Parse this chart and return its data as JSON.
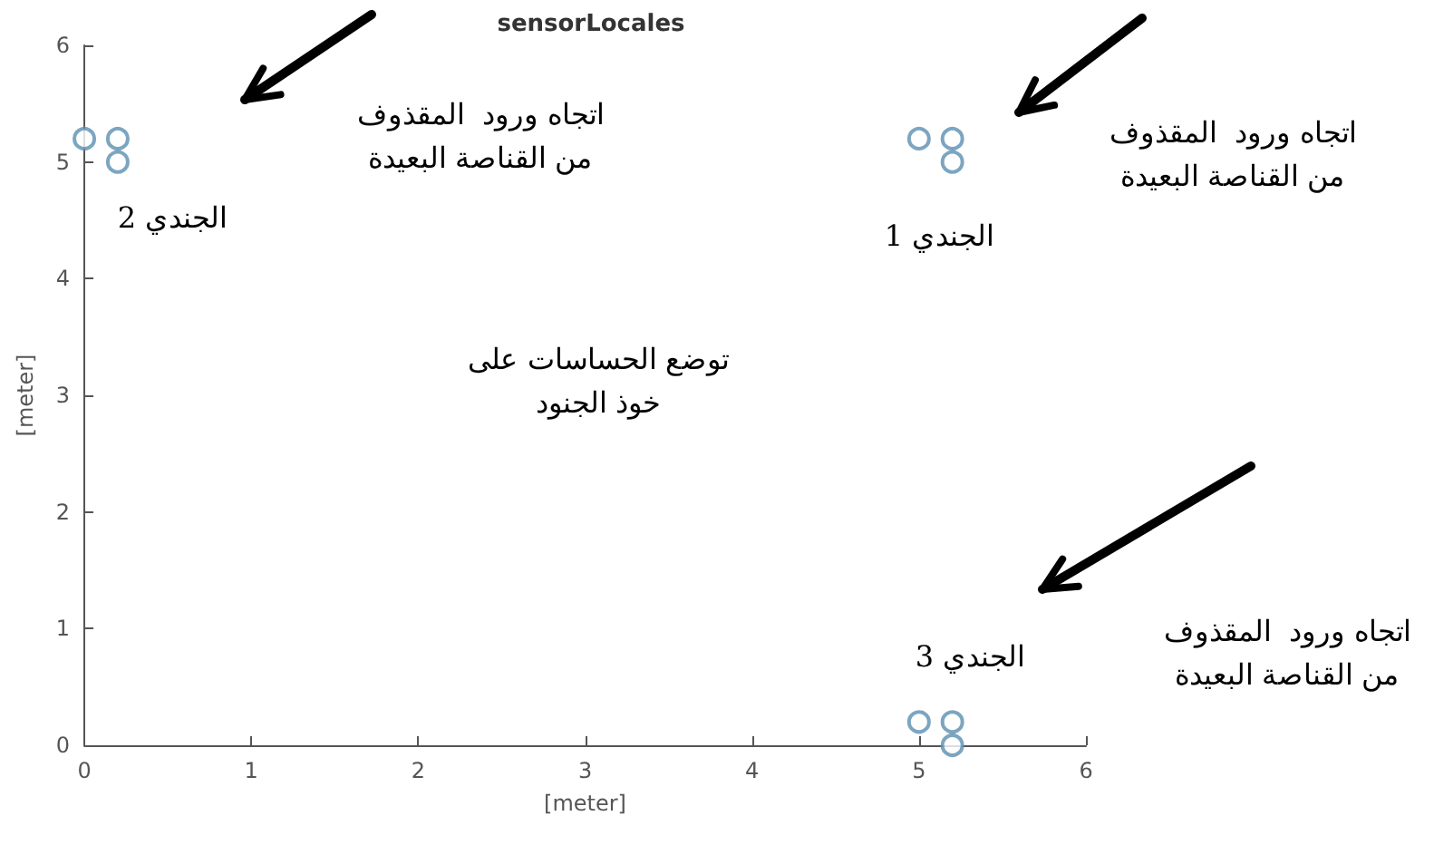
{
  "chart_data": {
    "type": "scatter",
    "title": "sensorLocales",
    "xlabel": "[meter]",
    "ylabel": "[meter]",
    "x": [
      0,
      0.2,
      0.2,
      5,
      5.2,
      5.2,
      5,
      5.2,
      5.2
    ],
    "series": [
      {
        "color": "#5b8fb0",
        "values": [
          5.2,
          5.2,
          5.0,
          5.2,
          5.2,
          5.0,
          0.2,
          0.2,
          0
        ]
      }
    ],
    "xlim": [
      0,
      6
    ],
    "ylim": [
      0,
      6
    ],
    "xticks": [
      0,
      1,
      2,
      3,
      4,
      5,
      6
    ],
    "yticks": [
      0,
      1,
      2,
      3,
      4,
      5,
      6
    ],
    "grid": false,
    "marker": "circle",
    "annotations": [
      "الجندي 2",
      "الجندي 1",
      "الجندي 3",
      "توضع الحساسات على\nخوذ الجنود",
      "اتجاه ورود  المقذوف\nمن القناصة البعيدة",
      "اتجاه ورود  المقذوف\nمن القناصة البعيدة",
      "اتجاه ورود  المقذوف\nمن القناصة البعيدة"
    ]
  }
}
